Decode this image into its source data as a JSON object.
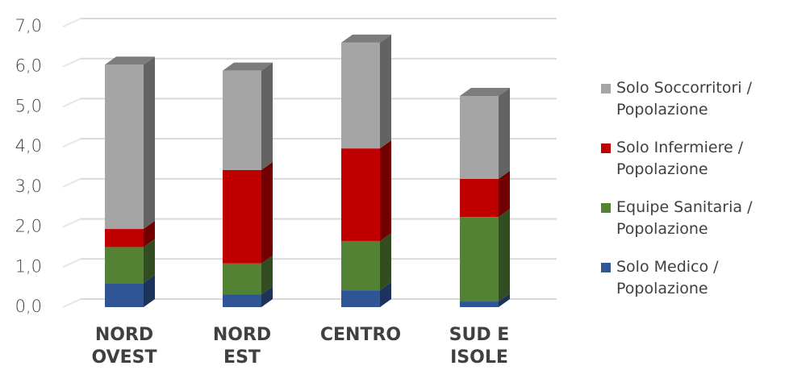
{
  "chart_data": {
    "type": "stacked-bar-3d",
    "categories": [
      "NORD OVEST",
      "NORD EST",
      "CENTRO",
      "SUD E ISOLE"
    ],
    "series": [
      {
        "name": "Solo Medico / Popolazione",
        "color": "#2f5597",
        "values": [
          0.6,
          0.32,
          0.42,
          0.14
        ]
      },
      {
        "name": "Equipe Sanitaria / Popolazione",
        "color": "#548235",
        "values": [
          0.9,
          0.77,
          1.23,
          2.11
        ]
      },
      {
        "name": "Solo Infermiere / Popolazione",
        "color": "#c00000",
        "values": [
          0.45,
          2.33,
          2.31,
          0.95
        ]
      },
      {
        "name": "Solo Soccorritori / Popolazione",
        "color": "#a5a5a5",
        "values": [
          4.1,
          2.48,
          2.64,
          2.07
        ]
      }
    ],
    "ylim": [
      0,
      7
    ],
    "yticks": [
      {
        "value": 0,
        "label": "0,0"
      },
      {
        "value": 1,
        "label": "1,0"
      },
      {
        "value": 2,
        "label": "2,0"
      },
      {
        "value": 3,
        "label": "3,0"
      },
      {
        "value": 4,
        "label": "4,0"
      },
      {
        "value": 5,
        "label": "5,0"
      },
      {
        "value": 6,
        "label": "6,0"
      },
      {
        "value": 7,
        "label": "7,0"
      }
    ],
    "grid": true,
    "legend": "right"
  }
}
